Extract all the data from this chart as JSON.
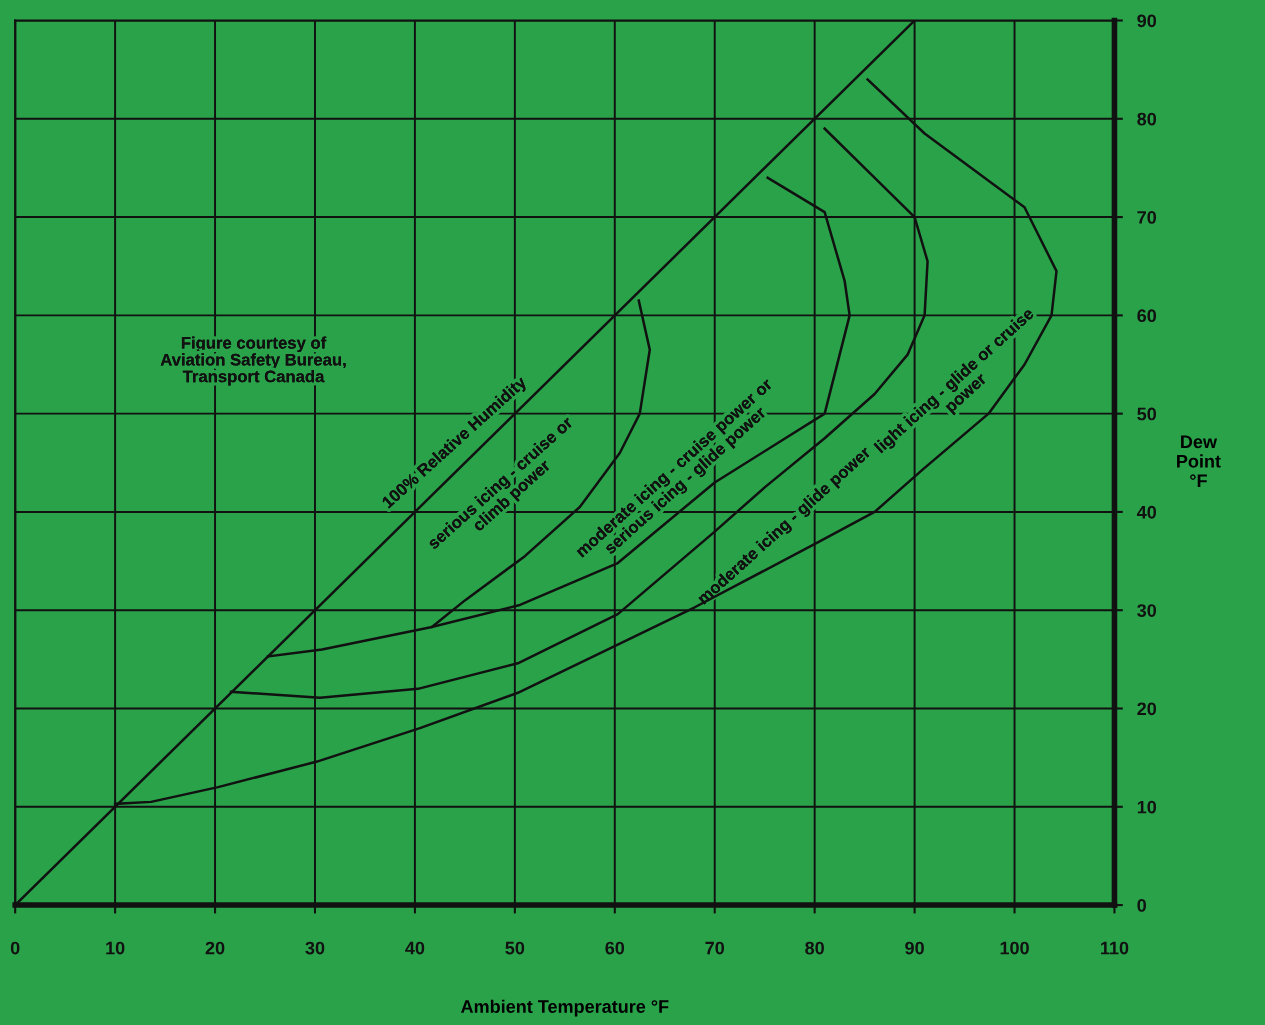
{
  "chart_data": {
    "type": "line",
    "xlabel": "Ambient Temperature °F",
    "ylabel": "Dew\nPoint\n°F",
    "xlim": [
      0,
      110
    ],
    "ylim": [
      0,
      90
    ],
    "xticks": [
      0,
      10,
      20,
      30,
      40,
      50,
      60,
      70,
      80,
      90,
      100,
      110
    ],
    "yticks": [
      0,
      10,
      20,
      30,
      40,
      50,
      60,
      70,
      80,
      90
    ],
    "grid": true,
    "marker": "none",
    "line_style": "solid",
    "series": [
      {
        "color": "#111111",
        "x": [
          0,
          90
        ],
        "values": [
          0,
          90
        ]
      },
      {
        "color": "#111111",
        "x": [
          25.3,
          30.7,
          41.7,
          45,
          51,
          56.5,
          60.5,
          62.5,
          63.5,
          62.4
        ],
        "values": [
          25.3,
          26,
          28.3,
          31,
          35.5,
          40.5,
          46,
          50,
          56.5,
          61.5
        ]
      },
      {
        "color": "#111111",
        "x": [
          41.7,
          50.4,
          60.3,
          70,
          81,
          83.5,
          83,
          81,
          75.3
        ],
        "values": [
          28.3,
          30.5,
          34.8,
          43,
          50,
          60,
          63.5,
          70.5,
          74
        ]
      },
      {
        "color": "#111111",
        "x": [
          21.6,
          30.5,
          40.3,
          50.3,
          60.3,
          70,
          75,
          81,
          86,
          89.3,
          91,
          91.3,
          90,
          85.5,
          81
        ],
        "values": [
          21.7,
          21.1,
          22,
          24.6,
          29.6,
          38,
          42.5,
          47.5,
          52,
          56,
          60,
          65.5,
          70,
          74.5,
          79
        ]
      },
      {
        "color": "#111111",
        "x": [
          10,
          13.6,
          20.3,
          30.2,
          40.5,
          50.3,
          60.3,
          68,
          80.5,
          86,
          90.8,
          97.4,
          101,
          103.7,
          104.2,
          101,
          91,
          85.3
        ],
        "values": [
          10.3,
          10.5,
          12,
          14.6,
          18,
          21.6,
          26.5,
          30.3,
          37,
          40,
          44.3,
          50,
          55,
          60,
          64.5,
          71,
          78.5,
          84
        ]
      }
    ],
    "annotations": [
      "Figure courtesy of\nAviation Safety Bureau,\nTransport Canada",
      "100% Relative Humidity",
      "serious icing - cruise or\nclimb power",
      "moderate icing - cruise power or\nserious icing - glide power",
      "moderate icing - glide power",
      "light icing - glide or cruise\npower"
    ]
  }
}
